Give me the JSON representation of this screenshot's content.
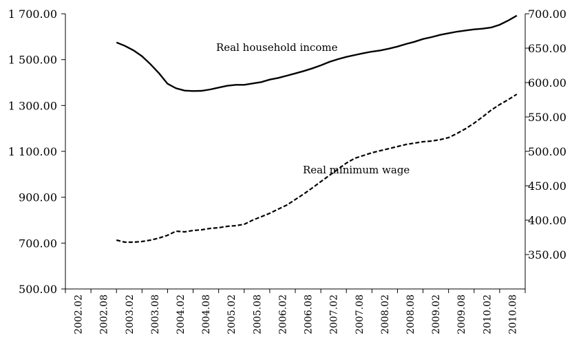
{
  "chart_data": {
    "type": "line",
    "title": "",
    "xlabel": "",
    "ylabel": "",
    "y2label": "",
    "grid": false,
    "legend": "none",
    "categories": [
      "2002.02",
      "2002.08",
      "2003.02",
      "2003.08",
      "2004.02",
      "2004.08",
      "2005.02",
      "2005.08",
      "2006.02",
      "2006.08",
      "2007.02",
      "2007.08",
      "2008.02",
      "2008.08",
      "2009.02",
      "2009.08",
      "2010.02",
      "2010.08"
    ],
    "ylim": [
      500,
      1700
    ],
    "yticks": [
      "500.00",
      "700.00",
      "900.00",
      "1 100.00",
      "1 300.00",
      "1 500.00",
      "1 700.00"
    ],
    "y2lim": [
      300,
      700
    ],
    "y2ticks": [
      "350.00",
      "400.00",
      "450.00",
      "500.00",
      "550.00",
      "600.00",
      "650.00",
      "700.00"
    ],
    "series": [
      {
        "name": "Real household income",
        "axis": "left",
        "style": "solid",
        "x": [
          2.0,
          2.33,
          2.67,
          3.0,
          3.33,
          3.67,
          4.0,
          4.33,
          4.67,
          5.0,
          5.33,
          5.67,
          6.0,
          6.33,
          6.67,
          7.0,
          7.33,
          7.67,
          8.0,
          8.33,
          8.67,
          9.0,
          9.33,
          9.67,
          10.0,
          10.33,
          10.67,
          11.0,
          11.33,
          11.67,
          12.0,
          12.33,
          12.67,
          13.0,
          13.33,
          13.67,
          14.0,
          14.33,
          14.67,
          15.0,
          15.33,
          15.67,
          16.0,
          16.33,
          16.67,
          17.0,
          17.33,
          17.67
        ],
        "values": [
          1575,
          1560,
          1540,
          1515,
          1480,
          1440,
          1395,
          1375,
          1365,
          1363,
          1364,
          1370,
          1378,
          1386,
          1390,
          1390,
          1396,
          1402,
          1413,
          1420,
          1430,
          1440,
          1450,
          1462,
          1475,
          1490,
          1502,
          1512,
          1520,
          1528,
          1535,
          1540,
          1548,
          1557,
          1568,
          1578,
          1590,
          1598,
          1608,
          1615,
          1622,
          1627,
          1632,
          1635,
          1640,
          1652,
          1670,
          1692
        ]
      },
      {
        "name": "Real minimum wage",
        "axis": "right",
        "style": "dashed",
        "x": [
          2.0,
          2.33,
          2.67,
          3.0,
          3.33,
          3.67,
          4.0,
          4.33,
          4.67,
          5.0,
          5.33,
          5.67,
          6.0,
          6.33,
          6.67,
          7.0,
          7.33,
          7.67,
          8.0,
          8.33,
          8.67,
          9.0,
          9.33,
          9.67,
          10.0,
          10.33,
          10.67,
          11.0,
          11.33,
          11.67,
          12.0,
          12.33,
          12.67,
          13.0,
          13.33,
          13.67,
          14.0,
          14.33,
          14.67,
          15.0,
          15.33,
          15.67,
          16.0,
          16.33,
          16.67,
          17.0,
          17.33,
          17.67
        ],
        "values": [
          371,
          368,
          368,
          369,
          371,
          374,
          378,
          384,
          383,
          385,
          386,
          388,
          389,
          391,
          392,
          394,
          400,
          405,
          410,
          416,
          422,
          430,
          438,
          447,
          456,
          465,
          474,
          483,
          490,
          494,
          498,
          501,
          504,
          507,
          510,
          512,
          514,
          515,
          517,
          520,
          526,
          533,
          541,
          550,
          560,
          568,
          575,
          583
        ]
      }
    ],
    "annotations": [
      {
        "text": "Real household income",
        "series": 0
      },
      {
        "text": "Real minimum wage",
        "series": 1
      }
    ]
  }
}
